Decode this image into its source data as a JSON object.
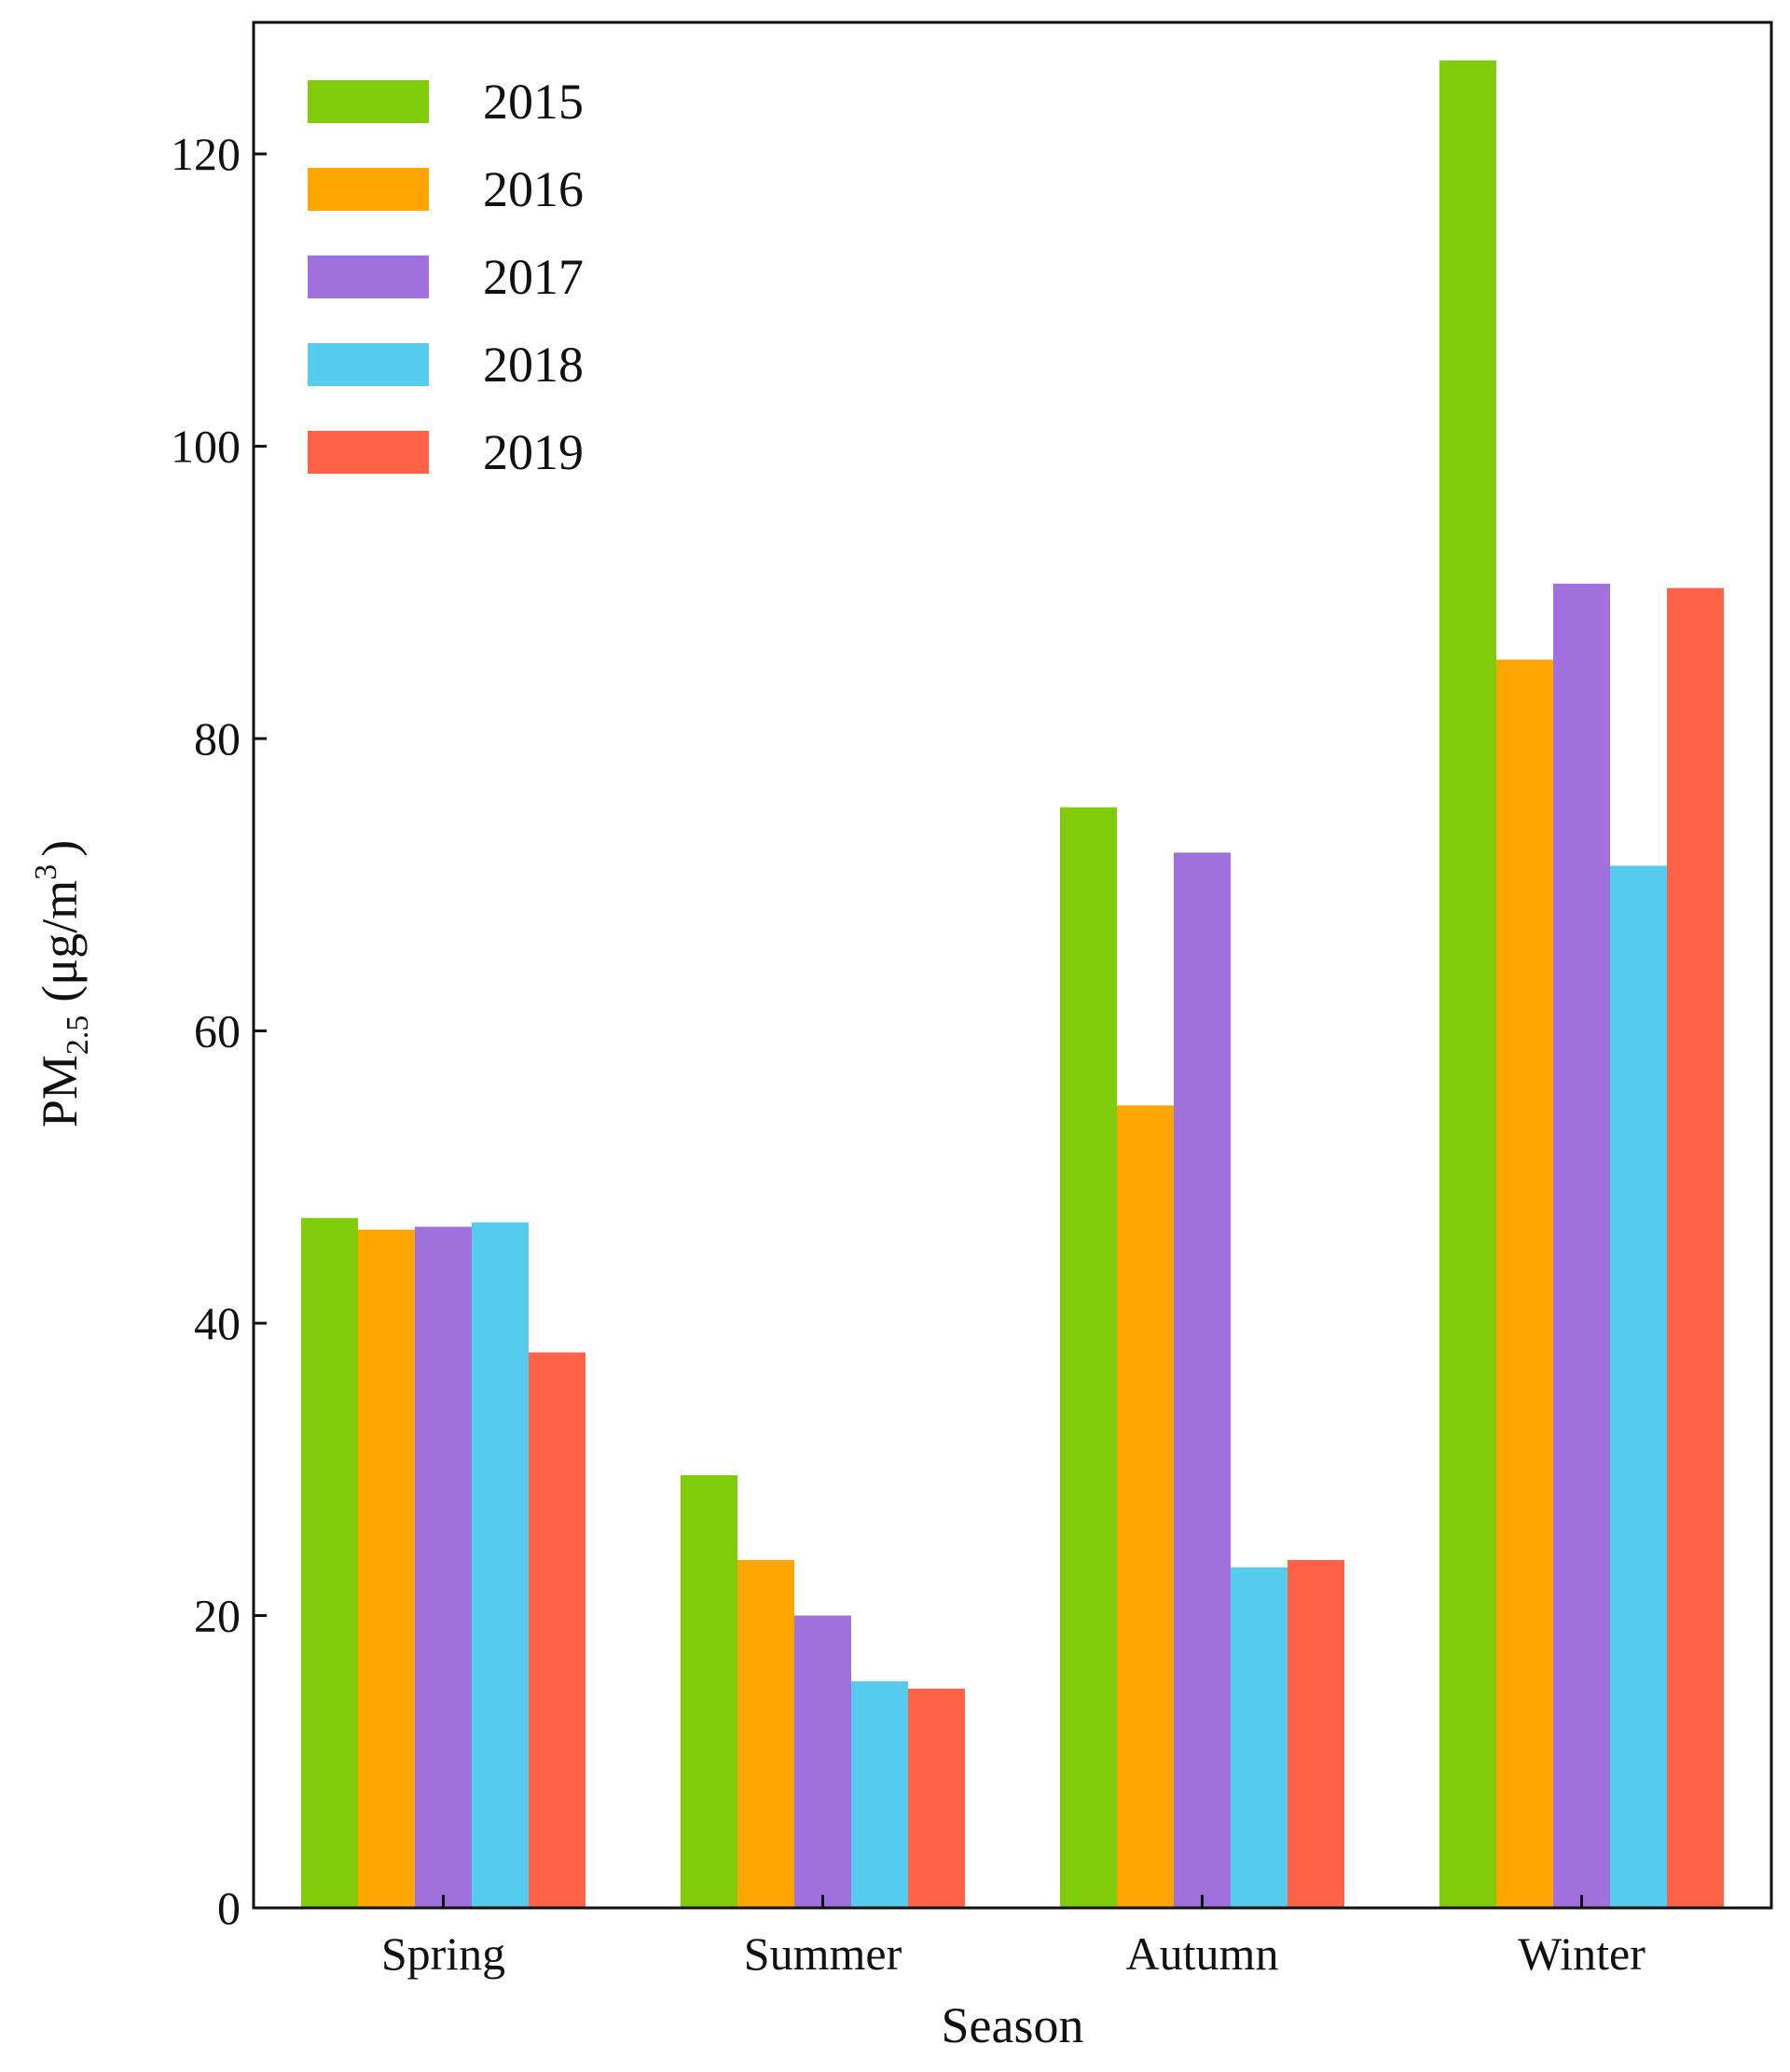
{
  "chart_data": {
    "type": "bar",
    "title": "",
    "xlabel": "Season",
    "ylabel": {
      "main": "PM",
      "subscript": "2.5",
      "unit_open": "(μg/m",
      "unit_superscript": "3",
      "unit_close": ")"
    },
    "categories": [
      "Spring",
      "Summer",
      "Autumn",
      "Winter"
    ],
    "ylim": [
      0,
      129
    ],
    "yticks": [
      0,
      20,
      40,
      60,
      80,
      100,
      120
    ],
    "legend_position": "top-left",
    "grid": false,
    "series": [
      {
        "name": "2015",
        "color": "#80CC0A",
        "values": [
          47.2,
          29.6,
          75.3,
          126.4
        ]
      },
      {
        "name": "2016",
        "color": "#FFA500",
        "values": [
          46.4,
          23.8,
          54.9,
          85.4
        ]
      },
      {
        "name": "2017",
        "color": "#A070DD",
        "values": [
          46.6,
          20.0,
          72.2,
          90.6
        ]
      },
      {
        "name": "2018",
        "color": "#55CCEE",
        "values": [
          46.9,
          15.5,
          23.3,
          71.3
        ]
      },
      {
        "name": "2019",
        "color": "#FF6347",
        "values": [
          38.0,
          15.0,
          23.8,
          90.3
        ]
      }
    ]
  }
}
